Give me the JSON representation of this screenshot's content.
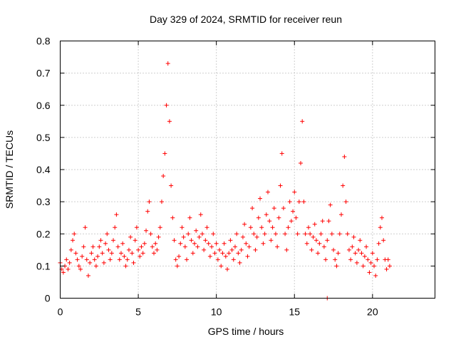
{
  "chart_data": {
    "type": "scatter",
    "title": "Day 329 of 2024, SRMTID for receiver reun",
    "xlabel": "GPS time / hours",
    "ylabel": "SRMTID / TECUs",
    "xlim": [
      0,
      24
    ],
    "ylim": [
      0,
      0.8
    ],
    "xticks": [
      0,
      5,
      10,
      15,
      20
    ],
    "xtick_labels": [
      "0",
      "5",
      "10",
      "15",
      "20"
    ],
    "yticks": [
      0,
      0.1,
      0.2,
      0.3,
      0.4,
      0.5,
      0.6,
      0.7,
      0.8
    ],
    "ytick_labels": [
      "0",
      "0.1",
      "0.2",
      "0.3",
      "0.4",
      "0.5",
      "0.6",
      "0.7",
      "0.8"
    ],
    "grid": true,
    "marker": "+",
    "color": "#ff0000",
    "series": [
      {
        "name": "SRMTID",
        "points": [
          [
            0.0,
            0.11
          ],
          [
            0.1,
            0.09
          ],
          [
            0.2,
            0.08
          ],
          [
            0.3,
            0.1
          ],
          [
            0.4,
            0.12
          ],
          [
            0.5,
            0.09
          ],
          [
            0.6,
            0.11
          ],
          [
            0.7,
            0.15
          ],
          [
            0.8,
            0.18
          ],
          [
            0.9,
            0.2
          ],
          [
            1.0,
            0.14
          ],
          [
            1.1,
            0.12
          ],
          [
            1.2,
            0.1
          ],
          [
            1.3,
            0.09
          ],
          [
            1.4,
            0.13
          ],
          [
            1.5,
            0.16
          ],
          [
            1.6,
            0.22
          ],
          [
            1.7,
            0.12
          ],
          [
            1.8,
            0.07
          ],
          [
            1.9,
            0.11
          ],
          [
            2.0,
            0.14
          ],
          [
            2.1,
            0.16
          ],
          [
            2.2,
            0.12
          ],
          [
            2.3,
            0.1
          ],
          [
            2.4,
            0.13
          ],
          [
            2.5,
            0.16
          ],
          [
            2.6,
            0.18
          ],
          [
            2.7,
            0.14
          ],
          [
            2.8,
            0.11
          ],
          [
            2.9,
            0.17
          ],
          [
            3.0,
            0.2
          ],
          [
            3.1,
            0.15
          ],
          [
            3.2,
            0.12
          ],
          [
            3.3,
            0.14
          ],
          [
            3.4,
            0.18
          ],
          [
            3.5,
            0.22
          ],
          [
            3.6,
            0.26
          ],
          [
            3.7,
            0.16
          ],
          [
            3.8,
            0.12
          ],
          [
            3.9,
            0.14
          ],
          [
            4.0,
            0.17
          ],
          [
            4.1,
            0.13
          ],
          [
            4.2,
            0.1
          ],
          [
            4.3,
            0.12
          ],
          [
            4.4,
            0.15
          ],
          [
            4.5,
            0.19
          ],
          [
            4.6,
            0.14
          ],
          [
            4.7,
            0.11
          ],
          [
            4.8,
            0.18
          ],
          [
            4.9,
            0.22
          ],
          [
            5.0,
            0.15
          ],
          [
            5.1,
            0.13
          ],
          [
            5.2,
            0.16
          ],
          [
            5.3,
            0.14
          ],
          [
            5.4,
            0.17
          ],
          [
            5.5,
            0.21
          ],
          [
            5.6,
            0.27
          ],
          [
            5.7,
            0.3
          ],
          [
            5.8,
            0.2
          ],
          [
            5.9,
            0.16
          ],
          [
            6.0,
            0.14
          ],
          [
            6.1,
            0.17
          ],
          [
            6.2,
            0.15
          ],
          [
            6.3,
            0.19
          ],
          [
            6.4,
            0.22
          ],
          [
            6.5,
            0.3
          ],
          [
            6.6,
            0.38
          ],
          [
            6.7,
            0.45
          ],
          [
            6.8,
            0.6
          ],
          [
            6.9,
            0.73
          ],
          [
            7.0,
            0.55
          ],
          [
            7.1,
            0.35
          ],
          [
            7.2,
            0.25
          ],
          [
            7.3,
            0.18
          ],
          [
            7.4,
            0.12
          ],
          [
            7.5,
            0.1
          ],
          [
            7.6,
            0.13
          ],
          [
            7.7,
            0.17
          ],
          [
            7.8,
            0.22
          ],
          [
            7.9,
            0.19
          ],
          [
            8.0,
            0.16
          ],
          [
            8.1,
            0.12
          ],
          [
            8.2,
            0.2
          ],
          [
            8.3,
            0.25
          ],
          [
            8.4,
            0.18
          ],
          [
            8.5,
            0.14
          ],
          [
            8.6,
            0.17
          ],
          [
            8.7,
            0.21
          ],
          [
            8.8,
            0.16
          ],
          [
            8.9,
            0.19
          ],
          [
            9.0,
            0.26
          ],
          [
            9.1,
            0.2
          ],
          [
            9.2,
            0.15
          ],
          [
            9.3,
            0.18
          ],
          [
            9.4,
            0.22
          ],
          [
            9.5,
            0.17
          ],
          [
            9.6,
            0.13
          ],
          [
            9.7,
            0.16
          ],
          [
            9.8,
            0.2
          ],
          [
            9.9,
            0.14
          ],
          [
            10.0,
            0.17
          ],
          [
            10.1,
            0.12
          ],
          [
            10.2,
            0.15
          ],
          [
            10.3,
            0.1
          ],
          [
            10.4,
            0.14
          ],
          [
            10.5,
            0.17
          ],
          [
            10.6,
            0.13
          ],
          [
            10.7,
            0.09
          ],
          [
            10.8,
            0.14
          ],
          [
            10.9,
            0.18
          ],
          [
            11.0,
            0.15
          ],
          [
            11.1,
            0.12
          ],
          [
            11.2,
            0.16
          ],
          [
            11.3,
            0.2
          ],
          [
            11.4,
            0.14
          ],
          [
            11.5,
            0.11
          ],
          [
            11.6,
            0.15
          ],
          [
            11.7,
            0.19
          ],
          [
            11.8,
            0.23
          ],
          [
            11.9,
            0.17
          ],
          [
            12.0,
            0.13
          ],
          [
            12.1,
            0.16
          ],
          [
            12.2,
            0.22
          ],
          [
            12.3,
            0.28
          ],
          [
            12.4,
            0.2
          ],
          [
            12.5,
            0.15
          ],
          [
            12.6,
            0.19
          ],
          [
            12.7,
            0.25
          ],
          [
            12.8,
            0.31
          ],
          [
            12.9,
            0.22
          ],
          [
            13.0,
            0.17
          ],
          [
            13.1,
            0.2
          ],
          [
            13.2,
            0.26
          ],
          [
            13.3,
            0.33
          ],
          [
            13.4,
            0.24
          ],
          [
            13.5,
            0.18
          ],
          [
            13.6,
            0.22
          ],
          [
            13.7,
            0.28
          ],
          [
            13.8,
            0.2
          ],
          [
            13.9,
            0.16
          ],
          [
            14.0,
            0.25
          ],
          [
            14.1,
            0.35
          ],
          [
            14.2,
            0.45
          ],
          [
            14.3,
            0.28
          ],
          [
            14.4,
            0.2
          ],
          [
            14.5,
            0.15
          ],
          [
            14.6,
            0.22
          ],
          [
            14.7,
            0.3
          ],
          [
            14.8,
            0.24
          ],
          [
            14.9,
            0.27
          ],
          [
            15.0,
            0.33
          ],
          [
            15.1,
            0.25
          ],
          [
            15.2,
            0.2
          ],
          [
            15.3,
            0.3
          ],
          [
            15.4,
            0.42
          ],
          [
            15.5,
            0.55
          ],
          [
            15.6,
            0.3
          ],
          [
            15.7,
            0.2
          ],
          [
            15.8,
            0.17
          ],
          [
            15.9,
            0.22
          ],
          [
            16.0,
            0.2
          ],
          [
            16.1,
            0.15
          ],
          [
            16.2,
            0.19
          ],
          [
            16.3,
            0.23
          ],
          [
            16.4,
            0.18
          ],
          [
            16.5,
            0.14
          ],
          [
            16.6,
            0.17
          ],
          [
            16.7,
            0.2
          ],
          [
            16.8,
            0.24
          ],
          [
            16.9,
            0.16
          ],
          [
            17.0,
            0.12
          ],
          [
            17.1,
            0.18
          ],
          [
            17.2,
            0.24
          ],
          [
            17.3,
            0.29
          ],
          [
            17.4,
            0.2
          ],
          [
            17.5,
            0.15
          ],
          [
            17.6,
            0.12
          ],
          [
            17.7,
            0.1
          ],
          [
            17.8,
            0.14
          ],
          [
            17.9,
            0.2
          ],
          [
            18.0,
            0.26
          ],
          [
            18.1,
            0.35
          ],
          [
            18.2,
            0.44
          ],
          [
            18.3,
            0.3
          ],
          [
            18.4,
            0.2
          ],
          [
            18.5,
            0.15
          ],
          [
            18.6,
            0.12
          ],
          [
            18.7,
            0.16
          ],
          [
            18.8,
            0.19
          ],
          [
            18.9,
            0.14
          ],
          [
            19.0,
            0.11
          ],
          [
            19.1,
            0.15
          ],
          [
            19.2,
            0.18
          ],
          [
            19.3,
            0.14
          ],
          [
            19.4,
            0.1
          ],
          [
            19.5,
            0.13
          ],
          [
            19.6,
            0.16
          ],
          [
            19.7,
            0.12
          ],
          [
            19.8,
            0.08
          ],
          [
            19.9,
            0.11
          ],
          [
            20.0,
            0.14
          ],
          [
            20.1,
            0.1
          ],
          [
            20.2,
            0.07
          ],
          [
            20.3,
            0.12
          ],
          [
            20.4,
            0.17
          ],
          [
            20.5,
            0.22
          ],
          [
            20.6,
            0.25
          ],
          [
            20.7,
            0.18
          ],
          [
            20.8,
            0.12
          ],
          [
            20.9,
            0.09
          ],
          [
            21.0,
            0.12
          ],
          [
            21.1,
            0.1
          ],
          [
            17.1,
            0.0
          ]
        ]
      }
    ]
  }
}
